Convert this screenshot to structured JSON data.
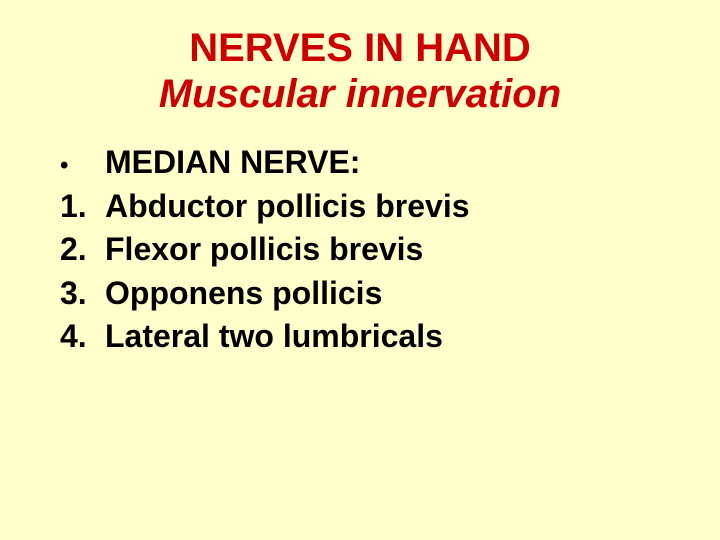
{
  "title": {
    "line1": "NERVES IN HAND",
    "line2": "Muscular innervation"
  },
  "items": [
    {
      "marker": "•",
      "text": "MEDIAN NERVE:",
      "is_bullet": true
    },
    {
      "marker": "1.",
      "text": "Abductor pollicis brevis",
      "is_bullet": false
    },
    {
      "marker": "2.",
      "text": "Flexor pollicis brevis",
      "is_bullet": false
    },
    {
      "marker": "3.",
      "text": "Opponens pollicis",
      "is_bullet": false
    },
    {
      "marker": "4.",
      "text": "Lateral two lumbricals",
      "is_bullet": false
    }
  ],
  "colors": {
    "background": "#ffffcc",
    "title": "#cc0000",
    "body_text": "#000000"
  },
  "typography": {
    "title_fontsize": 40,
    "body_fontsize": 32,
    "font_family": "Arial",
    "title_weight": "bold",
    "body_weight": "bold"
  }
}
